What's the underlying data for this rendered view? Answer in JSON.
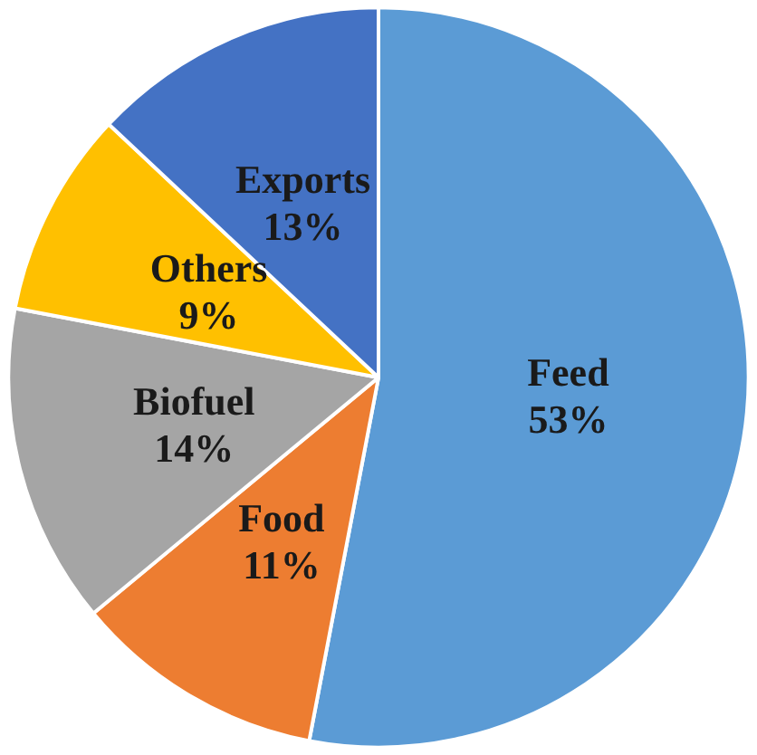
{
  "chart_data": {
    "type": "pie",
    "categories": [
      "Feed",
      "Food",
      "Biofuel",
      "Others",
      "Exports"
    ],
    "values": [
      53,
      11,
      14,
      9,
      13
    ],
    "value_labels": [
      "53%",
      "11%",
      "14%",
      "9%",
      "13%"
    ],
    "colors": [
      "#5b9bd5",
      "#ed7d31",
      "#a5a5a5",
      "#ffc000",
      "#4472c4"
    ],
    "legend": false
  }
}
